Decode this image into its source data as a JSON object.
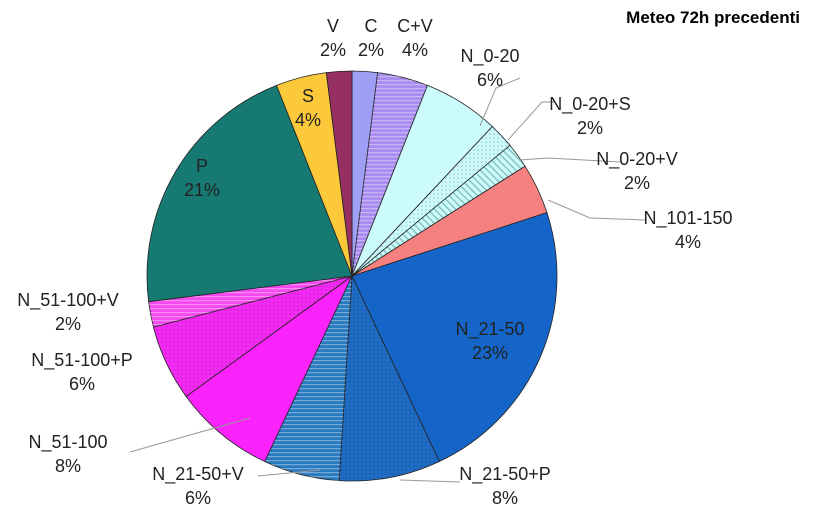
{
  "chart_data": {
    "type": "pie",
    "title": "Meteo 72h precedenti",
    "start": "12 o'clock, clockwise",
    "slices": [
      {
        "label": "C",
        "value": 2,
        "pct": "2%",
        "color": "#9f9ff5",
        "pattern": "none"
      },
      {
        "label": "C+V",
        "value": 4,
        "pct": "4%",
        "color": "#a98cf0",
        "pattern": "hatch"
      },
      {
        "label": "N_0-20",
        "value": 6,
        "pct": "6%",
        "color": "#ccfbfb",
        "pattern": "none"
      },
      {
        "label": "N_0-20+S",
        "value": 2,
        "pct": "2%",
        "color": "#ccfbfb",
        "pattern": "dots"
      },
      {
        "label": "N_0-20+V",
        "value": 2,
        "pct": "2%",
        "color": "#ccfbfb",
        "pattern": "diag"
      },
      {
        "label": "N_101-150",
        "value": 4,
        "pct": "4%",
        "color": "#f58080",
        "pattern": "none"
      },
      {
        "label": "N_21-50",
        "value": 23,
        "pct": "23%",
        "color": "#1565c8",
        "pattern": "none"
      },
      {
        "label": "N_21-50+P",
        "value": 8,
        "pct": "8%",
        "color": "#1f6cc4",
        "pattern": "dots"
      },
      {
        "label": "N_21-50+V",
        "value": 6,
        "pct": "6%",
        "color": "#2a7ac0",
        "pattern": "hatch"
      },
      {
        "label": "N_51-100",
        "value": 8,
        "pct": "8%",
        "color": "#fb22fb",
        "pattern": "none"
      },
      {
        "label": "N_51-100+P",
        "value": 6,
        "pct": "6%",
        "color": "#f42af4",
        "pattern": "dots"
      },
      {
        "label": "N_51-100+V",
        "value": 2,
        "pct": "2%",
        "color": "#f54af0",
        "pattern": "hatch"
      },
      {
        "label": "P",
        "value": 21,
        "pct": "21%",
        "color": "#177a72",
        "pattern": "none"
      },
      {
        "label": "S",
        "value": 4,
        "pct": "4%",
        "color": "#fcc93a",
        "pattern": "none"
      },
      {
        "label": "V",
        "value": 2,
        "pct": "2%",
        "color": "#963062",
        "pattern": "none"
      }
    ],
    "legend": "none"
  }
}
